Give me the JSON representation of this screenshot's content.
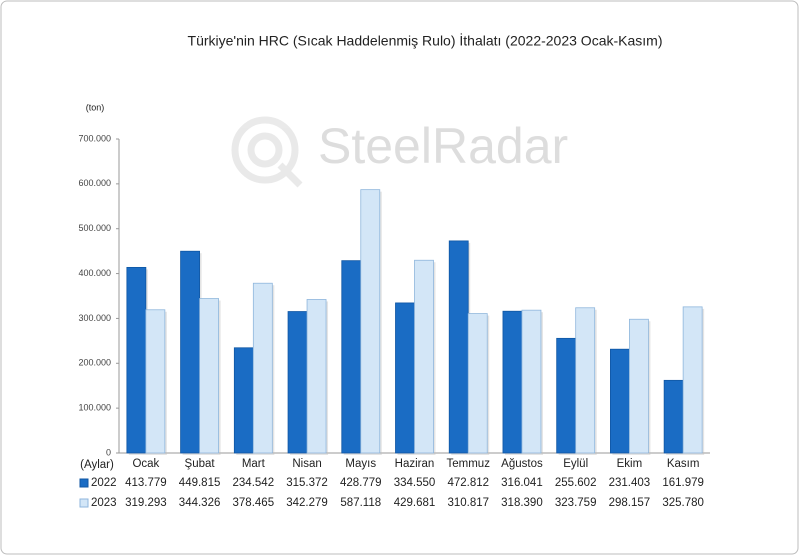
{
  "chart_data": {
    "type": "bar",
    "title": "Türkiye'nin HRC (Sıcak Haddelenmiş Rulo) İthalatı (2022-2023 Ocak-Kasım)",
    "watermark": "SteelRadar",
    "y_label": "(ton)",
    "x_label": "(Aylar)",
    "categories": [
      "Ocak",
      "Şubat",
      "Mart",
      "Nisan",
      "Mayıs",
      "Haziran",
      "Temmuz",
      "Ağustos",
      "Eylül",
      "Ekim",
      "Kasım"
    ],
    "series": [
      {
        "name": "2022",
        "color": "#1a6cc4",
        "values": [
          413779,
          449815,
          234542,
          315372,
          428779,
          334550,
          472812,
          316041,
          255602,
          231403,
          161979
        ],
        "value_labels": [
          "413.779",
          "449.815",
          "234.542",
          "315.372",
          "428.779",
          "334.550",
          "472.812",
          "316.041",
          "255.602",
          "231.403",
          "161.979"
        ]
      },
      {
        "name": "2023",
        "color": "#d3e6f7",
        "values": [
          319293,
          344326,
          378465,
          342279,
          587118,
          429681,
          310817,
          318390,
          323759,
          298157,
          325780
        ],
        "value_labels": [
          "319.293",
          "344.326",
          "378.465",
          "342.279",
          "587.118",
          "429.681",
          "310.817",
          "318.390",
          "323.759",
          "298.157",
          "325.780"
        ]
      }
    ],
    "ylim": [
      0,
      700000
    ],
    "yticks": [
      0,
      {
        "value": 100000,
        "label": "100.000"
      },
      {
        "value": 200000,
        "label": "200.000"
      },
      {
        "value": 300000,
        "label": "300.000"
      },
      {
        "value": 400000,
        "label": "400.000"
      },
      {
        "value": 500000,
        "label": "500.000"
      },
      {
        "value": 600000,
        "label": "600.000"
      },
      {
        "value": 700000,
        "label": "700.000"
      }
    ],
    "grid": false
  }
}
